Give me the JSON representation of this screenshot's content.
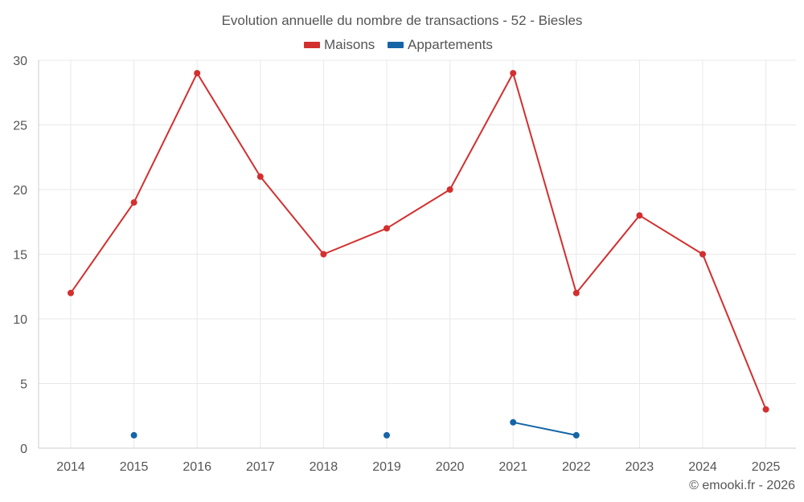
{
  "chart_data": {
    "type": "line",
    "title": "Evolution annuelle du nombre de transactions - 52 - Biesles",
    "xlabel": "",
    "ylabel": "",
    "x": [
      "2014",
      "2015",
      "2016",
      "2017",
      "2018",
      "2019",
      "2020",
      "2021",
      "2022",
      "2023",
      "2024",
      "2025"
    ],
    "ylim": [
      0,
      30
    ],
    "yticks": [
      "0",
      "5",
      "10",
      "15",
      "20",
      "25",
      "30"
    ],
    "grid": true,
    "legend_position": "top-center",
    "series": [
      {
        "name": "Maisons",
        "color": "#d32f2f",
        "values": [
          12,
          19,
          29,
          21,
          15,
          17,
          20,
          29,
          12,
          18,
          15,
          3
        ]
      },
      {
        "name": "Appartements",
        "color": "#1565a6",
        "values": [
          null,
          1,
          null,
          null,
          null,
          1,
          null,
          2,
          1,
          null,
          null,
          null
        ]
      }
    ]
  },
  "footer": {
    "credit": "© emooki.fr - 2026"
  }
}
